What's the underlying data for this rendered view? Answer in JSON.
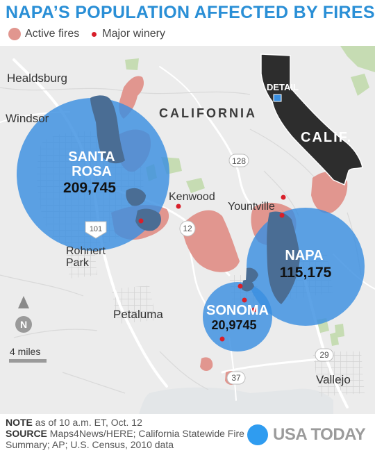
{
  "title": "NAPA’S POPULATION AFFECTED BY FIRES",
  "legend": {
    "fires": "Active fires",
    "winery": "Major winery"
  },
  "colors": {
    "fire": "#e1968f",
    "winery": "#d81f2a",
    "circle": "#3a8fe0",
    "park": "#c6dcb3",
    "state": "#2d2d2d",
    "title": "#2a8fd6"
  },
  "map": {
    "region_label": "CALIFORNIA",
    "cities": {
      "healdsburg": "Healdsburg",
      "windsor": "Windsor",
      "kenwood": "Kenwood",
      "yountville": "Yountville",
      "rohnert": "Rohnert\nPark",
      "petaluma": "Petaluma",
      "vallejo": "Vallejo"
    },
    "highways": {
      "h128": "128",
      "h12": "12",
      "h101": "101",
      "h29": "29",
      "h37": "37"
    },
    "inset": {
      "detail": "DETAIL",
      "calif": "CALIF."
    },
    "populations": {
      "santa_rosa": {
        "name": "SANTA\nROSA",
        "value": "209,745"
      },
      "napa": {
        "name": "NAPA",
        "value": "115,175"
      },
      "sonoma": {
        "name": "SONOMA",
        "value": "20,9745"
      }
    },
    "north": "N",
    "scale": "4 miles"
  },
  "footer": {
    "note_label": "NOTE",
    "note": " as of 10 a.m. ET, Oct. 12",
    "source_label": "SOURCE",
    "source": " Maps4News/HERE; California Statewide Fire Summary; AP; U.S. Census, 2010 data",
    "logo": "USA TODAY"
  }
}
